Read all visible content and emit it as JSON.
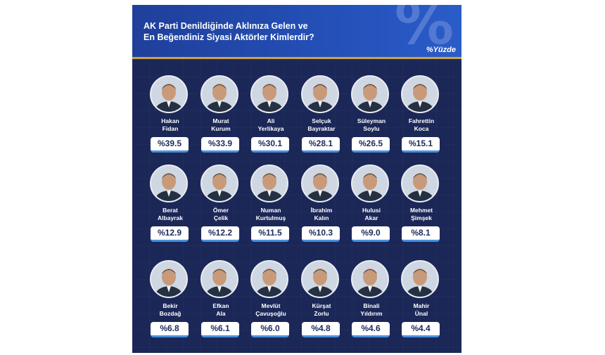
{
  "header": {
    "title_line1": "AK Parti Denildiğinde Aklınıza Gelen ve",
    "title_line2": "En Beğendiniz Siyasi Aktörler Kimlerdir?",
    "percent_symbol": "%",
    "unit_label": "%Yüzde"
  },
  "colors": {
    "background": "#1b2757",
    "header": "#2450b8",
    "accent_line": "#c9a24b",
    "value_box": "#ffffff",
    "value_border": "#4a90e2"
  },
  "chart_data": {
    "type": "bar",
    "title": "AK Parti Denildiğinde Aklınıza Gelen ve En Beğendiniz Siyasi Aktörler Kimlerdir?",
    "unit": "%Yüzde",
    "categories": [
      "Hakan Fidan",
      "Murat Kurum",
      "Ali Yerlikaya",
      "Selçuk Bayraktar",
      "Süleyman Soylu",
      "Fahrettin Koca",
      "Berat Albayrak",
      "Ömer Çelik",
      "Numan Kurtulmuş",
      "İbrahim Kalın",
      "Hulusi Akar",
      "Mehmet Şimşek",
      "Bekir Bozdağ",
      "Efkan Ala",
      "Mevlüt Çavuşoğlu",
      "Kürşat Zorlu",
      "Binali Yıldırım",
      "Mahir Ünal"
    ],
    "values": [
      39.5,
      33.9,
      30.1,
      28.1,
      26.5,
      15.1,
      12.9,
      12.2,
      11.5,
      10.3,
      9.0,
      8.1,
      6.8,
      6.1,
      6.0,
      4.8,
      4.6,
      4.4
    ],
    "people": [
      {
        "first": "Hakan",
        "last": "Fidan",
        "value_label": "%39.5"
      },
      {
        "first": "Murat",
        "last": "Kurum",
        "value_label": "%33.9"
      },
      {
        "first": "Ali",
        "last": "Yerlikaya",
        "value_label": "%30.1"
      },
      {
        "first": "Selçuk",
        "last": "Bayraktar",
        "value_label": "%28.1"
      },
      {
        "first": "Süleyman",
        "last": "Soylu",
        "value_label": "%26.5"
      },
      {
        "first": "Fahrettin",
        "last": "Koca",
        "value_label": "%15.1"
      },
      {
        "first": "Berat",
        "last": "Albayrak",
        "value_label": "%12.9"
      },
      {
        "first": "Ömer",
        "last": "Çelik",
        "value_label": "%12.2"
      },
      {
        "first": "Numan",
        "last": "Kurtulmuş",
        "value_label": "%11.5"
      },
      {
        "first": "İbrahim",
        "last": "Kalın",
        "value_label": "%10.3"
      },
      {
        "first": "Hulusi",
        "last": "Akar",
        "value_label": "%9.0"
      },
      {
        "first": "Mehmet",
        "last": "Şimşek",
        "value_label": "%8.1"
      },
      {
        "first": "Bekir",
        "last": "Bozdağ",
        "value_label": "%6.8"
      },
      {
        "first": "Efkan",
        "last": "Ala",
        "value_label": "%6.1"
      },
      {
        "first": "Mevlüt",
        "last": "Çavuşoğlu",
        "value_label": "%6.0"
      },
      {
        "first": "Kürşat",
        "last": "Zorlu",
        "value_label": "%4.8"
      },
      {
        "first": "Binali",
        "last": "Yıldırım",
        "value_label": "%4.6"
      },
      {
        "first": "Mahir",
        "last": "Ünal",
        "value_label": "%4.4"
      }
    ]
  }
}
